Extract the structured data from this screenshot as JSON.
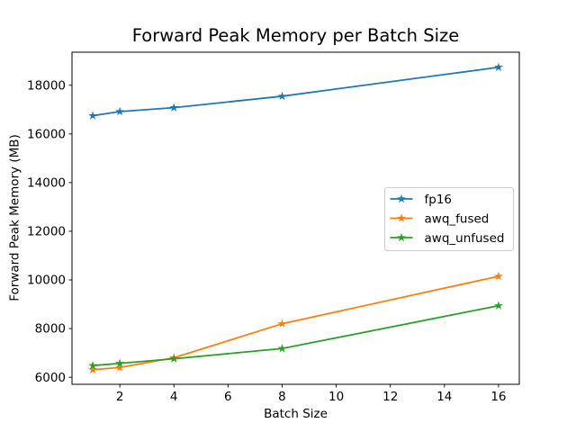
{
  "chart_data": {
    "type": "line",
    "title": "Forward Peak Memory per Batch Size",
    "xlabel": "Batch Size",
    "ylabel": "Forward Peak Memory (MB)",
    "x": [
      1,
      2,
      4,
      8,
      16
    ],
    "series": [
      {
        "name": "fp16",
        "color": "#1f77b4",
        "values": [
          16750,
          16920,
          17080,
          17550,
          18740
        ]
      },
      {
        "name": "awq_fused",
        "color": "#ff7f0e",
        "values": [
          6310,
          6400,
          6800,
          8200,
          10150
        ]
      },
      {
        "name": "awq_unfused",
        "color": "#2ca02c",
        "values": [
          6480,
          6570,
          6760,
          7180,
          8940
        ]
      }
    ],
    "xticks": [
      2,
      4,
      6,
      8,
      10,
      12,
      14,
      16
    ],
    "yticks": [
      6000,
      8000,
      10000,
      12000,
      14000,
      16000,
      18000
    ],
    "xlim": [
      0.233,
      16.767
    ],
    "ylim": [
      5710,
      19360
    ],
    "marker": "star",
    "grid": false,
    "legend": {
      "position": "center-right",
      "border_color": "#cccccc",
      "background": "#ffffff"
    },
    "axes_color": "#000000",
    "background": "#ffffff"
  }
}
